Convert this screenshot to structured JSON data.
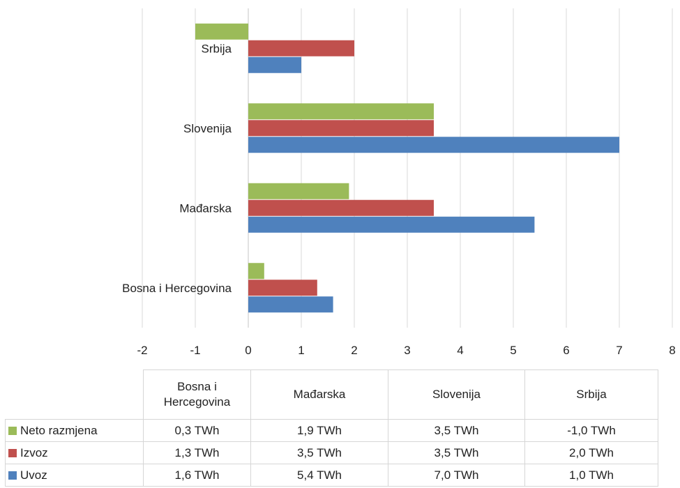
{
  "chart_data": {
    "type": "bar",
    "orientation": "horizontal",
    "categories": [
      "Bosna i Hercegovina",
      "Mađarska",
      "Slovenija",
      "Srbija"
    ],
    "series": [
      {
        "name": "Neto razmjena",
        "color": "#9bbb59",
        "values": [
          0.3,
          1.9,
          3.5,
          -1.0
        ],
        "labels": [
          "0,3 TWh",
          "1,9 TWh",
          "3,5 TWh",
          "-1,0 TWh"
        ]
      },
      {
        "name": "Izvoz",
        "color": "#c0504d",
        "values": [
          1.3,
          3.5,
          3.5,
          2.0
        ],
        "labels": [
          "1,3 TWh",
          "3,5 TWh",
          "3,5 TWh",
          "2,0 TWh"
        ]
      },
      {
        "name": "Uvoz",
        "color": "#4f81bd",
        "values": [
          1.6,
          5.4,
          7.0,
          1.0
        ],
        "labels": [
          "1,6 TWh",
          "5,4 TWh",
          "7,0 TWh",
          "1,0 TWh"
        ]
      }
    ],
    "xlim": [
      -2,
      8
    ],
    "xticks": [
      "-2",
      "-1",
      "0",
      "1",
      "2",
      "3",
      "4",
      "5",
      "6",
      "7",
      "8"
    ],
    "grid": true,
    "legend": "data-table-below",
    "title": "",
    "xlabel": "",
    "ylabel": ""
  },
  "table": {
    "headers": [
      "Bosna i Hercegovina",
      "Mađarska",
      "Slovenija",
      "Srbija"
    ]
  }
}
